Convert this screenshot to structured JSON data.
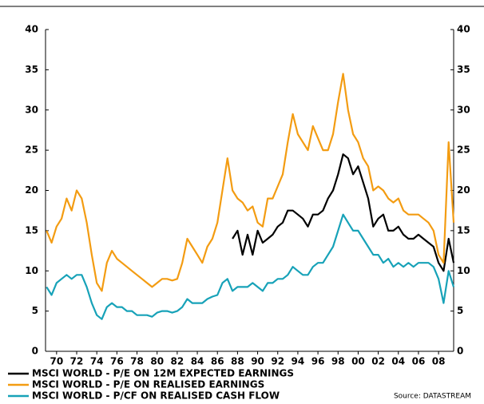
{
  "chart_data": {
    "type": "line",
    "x": [
      1969,
      1969.5,
      1970,
      1970.5,
      1971,
      1971.5,
      1972,
      1972.5,
      1973,
      1973.5,
      1974,
      1974.5,
      1975,
      1975.5,
      1976,
      1976.5,
      1977,
      1977.5,
      1978,
      1978.5,
      1979,
      1979.5,
      1980,
      1980.5,
      1981,
      1981.5,
      1982,
      1982.5,
      1983,
      1983.5,
      1984,
      1984.5,
      1985,
      1985.5,
      1986,
      1986.5,
      1987,
      1987.5,
      1988,
      1988.5,
      1989,
      1989.5,
      1990,
      1990.5,
      1991,
      1991.5,
      1992,
      1992.5,
      1993,
      1993.5,
      1994,
      1994.5,
      1995,
      1995.5,
      1996,
      1996.5,
      1997,
      1997.5,
      1998,
      1998.5,
      1999,
      1999.5,
      2000,
      2000.5,
      2001,
      2001.5,
      2002,
      2002.5,
      2003,
      2003.5,
      2004,
      2004.5,
      2005,
      2005.5,
      2006,
      2006.5,
      2007,
      2007.5,
      2008,
      2008.5,
      2009,
      2009.5
    ],
    "series": [
      {
        "name": "MSCI WORLD - P/E ON 12M EXPECTED EARNINGS",
        "color": "#000000",
        "values": [
          null,
          null,
          null,
          null,
          null,
          null,
          null,
          null,
          null,
          null,
          null,
          null,
          null,
          null,
          null,
          null,
          null,
          null,
          null,
          null,
          null,
          null,
          null,
          null,
          null,
          null,
          null,
          null,
          null,
          null,
          null,
          null,
          null,
          null,
          null,
          null,
          null,
          14,
          15,
          12,
          14.5,
          12,
          15,
          13.5,
          14,
          14.5,
          15.5,
          16,
          17.5,
          17.5,
          17,
          16.5,
          15.5,
          17,
          17,
          17.5,
          19,
          20,
          22,
          24.5,
          24,
          22,
          23,
          21,
          19,
          15.5,
          16.5,
          17,
          15,
          15,
          15.5,
          14.5,
          14,
          14,
          14.5,
          14,
          13.5,
          13,
          11,
          10,
          14,
          11
        ]
      },
      {
        "name": "MSCI WORLD - P/E ON REALISED EARNINGS",
        "color": "#f39c12",
        "values": [
          15,
          13.5,
          15.5,
          16.5,
          19,
          17.5,
          20,
          19,
          16,
          12,
          8.5,
          7.5,
          11,
          12.5,
          11.5,
          11,
          10.5,
          10,
          9.5,
          9,
          8.5,
          8,
          8.5,
          9,
          9,
          8.8,
          9,
          11,
          14,
          13,
          12,
          11,
          13,
          14,
          16,
          20,
          24,
          20,
          19,
          18.5,
          17.5,
          18,
          16,
          15.5,
          19,
          19,
          20.5,
          22,
          26,
          29.5,
          27,
          26,
          25,
          28,
          26.5,
          25,
          25,
          27,
          31,
          34.5,
          30,
          27,
          26,
          24,
          23,
          20,
          20.5,
          20,
          19,
          18.5,
          19,
          17.5,
          17,
          17,
          17,
          16.5,
          16,
          15,
          12,
          11,
          26,
          16
        ]
      },
      {
        "name": "MSCI WORLD - P/CF ON REALISED CASH FLOW",
        "color": "#17a2b8",
        "values": [
          8,
          7,
          8.5,
          9,
          9.5,
          9,
          9.5,
          9.5,
          8,
          6,
          4.5,
          4,
          5.5,
          6,
          5.5,
          5.5,
          5,
          5,
          4.5,
          4.5,
          4.5,
          4.3,
          4.8,
          5,
          5,
          4.8,
          5,
          5.5,
          6.5,
          6,
          6,
          6,
          6.5,
          6.8,
          7,
          8.5,
          9,
          7.5,
          8,
          8,
          8,
          8.5,
          8,
          7.5,
          8.5,
          8.5,
          9,
          9,
          9.5,
          10.5,
          10,
          9.5,
          9.5,
          10.5,
          11,
          11,
          12,
          13,
          15,
          17,
          16,
          15,
          15,
          14,
          13,
          12,
          12,
          11,
          11.5,
          10.5,
          11,
          10.5,
          11,
          10.5,
          11,
          11,
          11,
          10.5,
          9,
          6,
          10,
          8
        ]
      }
    ],
    "xlim": [
      1968.9,
      2009.5
    ],
    "xticks": [
      {
        "value": 1970,
        "label": "70"
      },
      {
        "value": 1972,
        "label": "72"
      },
      {
        "value": 1974,
        "label": "74"
      },
      {
        "value": 1976,
        "label": "76"
      },
      {
        "value": 1978,
        "label": "78"
      },
      {
        "value": 1980,
        "label": "80"
      },
      {
        "value": 1982,
        "label": "82"
      },
      {
        "value": 1984,
        "label": "84"
      },
      {
        "value": 1986,
        "label": "86"
      },
      {
        "value": 1988,
        "label": "88"
      },
      {
        "value": 1990,
        "label": "90"
      },
      {
        "value": 1992,
        "label": "92"
      },
      {
        "value": 1994,
        "label": "94"
      },
      {
        "value": 1996,
        "label": "96"
      },
      {
        "value": 1998,
        "label": "98"
      },
      {
        "value": 2000,
        "label": "00"
      },
      {
        "value": 2002,
        "label": "02"
      },
      {
        "value": 2004,
        "label": "04"
      },
      {
        "value": 2006,
        "label": "06"
      },
      {
        "value": 2008,
        "label": "08"
      }
    ],
    "ylim": [
      0,
      40
    ],
    "yticks": [
      0,
      5,
      10,
      15,
      20,
      25,
      30,
      35,
      40
    ],
    "y2lim": [
      0,
      40
    ],
    "y2ticks": [
      0,
      5,
      10,
      15,
      20,
      25,
      30,
      35,
      40
    ],
    "legend": "bottom-left",
    "source": "Source: DATASTREAM"
  }
}
